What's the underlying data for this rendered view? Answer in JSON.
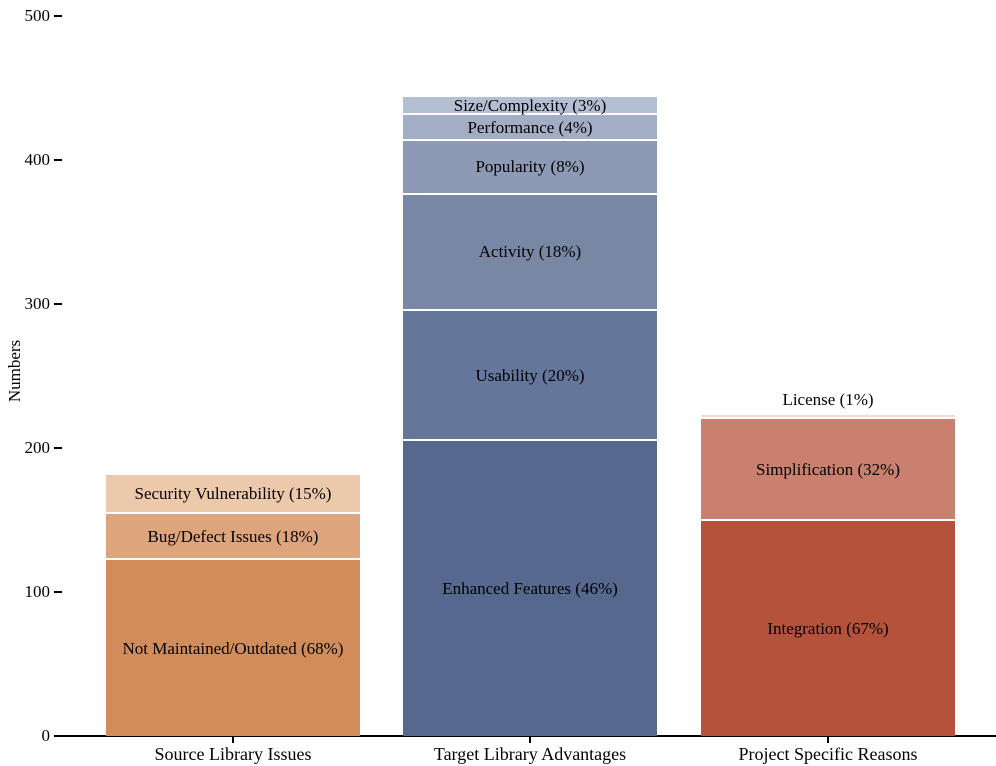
{
  "chart_data": {
    "type": "bar",
    "subtype": "stacked",
    "title": "",
    "xlabel": "",
    "ylabel": "Numbers",
    "ylim": [
      0,
      500
    ],
    "yticks": [
      0,
      100,
      200,
      300,
      400,
      500
    ],
    "grid": false,
    "legend": "none",
    "segment_edge_color": "#ffffff",
    "axis_color": "#000000",
    "text_color": "#000000",
    "categories": [
      "Source Library Issues",
      "Target Library Advantages",
      "Project Specific Reasons"
    ],
    "bars": [
      {
        "category": "Source Library Issues",
        "total": 181,
        "segments": [
          {
            "name": "Not Maintained/Outdated",
            "label": "Not Maintained/Outdated (68%)",
            "value": 122,
            "percent": 68,
            "color": "#d18c5b"
          },
          {
            "name": "Bug/Defect Issues",
            "label": "Bug/Defect Issues (18%)",
            "value": 32,
            "percent": 18,
            "color": "#dea57d"
          },
          {
            "name": "Security Vulnerability",
            "label": "Security Vulnerability (15%)",
            "value": 27,
            "percent": 15,
            "color": "#edc9ac"
          }
        ]
      },
      {
        "category": "Target Library Advantages",
        "total": 444,
        "segments": [
          {
            "name": "Enhanced Features",
            "label": "Enhanced Features (46%)",
            "value": 205,
            "percent": 46,
            "color": "#56688e"
          },
          {
            "name": "Usability",
            "label": "Usability (20%)",
            "value": 90,
            "percent": 20,
            "color": "#64769a"
          },
          {
            "name": "Activity",
            "label": "Activity (18%)",
            "value": 81,
            "percent": 18,
            "color": "#7787a4"
          },
          {
            "name": "Popularity",
            "label": "Popularity (8%)",
            "value": 37,
            "percent": 8,
            "color": "#8e9ab5"
          },
          {
            "name": "Performance",
            "label": "Performance (4%)",
            "value": 18,
            "percent": 4,
            "color": "#a3aec5"
          },
          {
            "name": "Size/Complexity",
            "label": "Size/Complexity (3%)",
            "value": 13,
            "percent": 3,
            "color": "#b5bfd3"
          }
        ]
      },
      {
        "category": "Project Specific Reasons",
        "total": 223,
        "segments": [
          {
            "name": "Integration",
            "label": "Integration (67%)",
            "value": 149,
            "percent": 67,
            "color": "#b4523b"
          },
          {
            "name": "Simplification",
            "label": "Simplification (32%)",
            "value": 71,
            "percent": 32,
            "color": "#c9806f"
          },
          {
            "name": "License",
            "label": "License (1%)",
            "value": 3,
            "percent": 1,
            "color": "#f0dcd5",
            "label_outside": true
          }
        ]
      }
    ]
  }
}
